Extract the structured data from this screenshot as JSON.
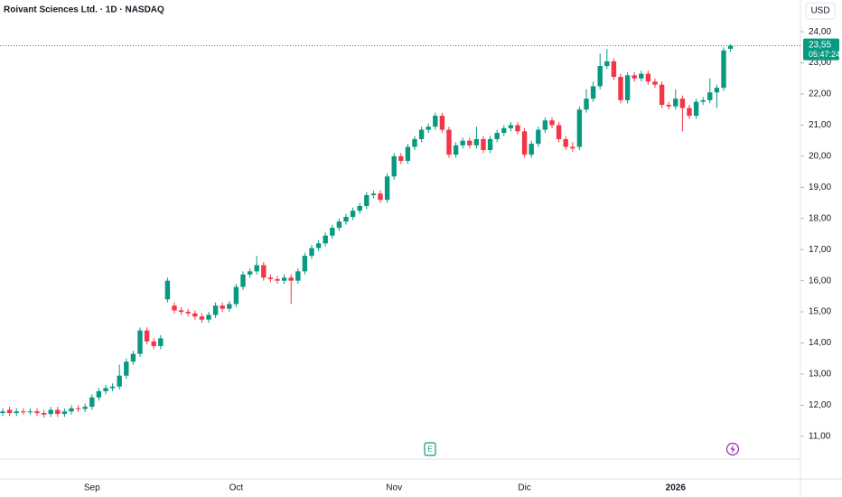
{
  "chart_data": {
    "type": "candlestick",
    "title": "Roivant Sciences Ltd. · 1D · NASDAQ",
    "currency": "USD",
    "last_price_label": "23,55",
    "countdown": "05:47:24",
    "up_color": "#089981",
    "down_color": "#f23645",
    "categories": [
      null,
      null,
      null,
      null,
      null,
      null,
      null,
      null,
      null,
      null,
      null,
      null,
      null,
      "Sep",
      null,
      null,
      null,
      null,
      null,
      null,
      null,
      null,
      null,
      null,
      null,
      null,
      null,
      null,
      null,
      null,
      null,
      null,
      null,
      null,
      "Oct",
      null,
      null,
      null,
      null,
      null,
      null,
      null,
      null,
      null,
      null,
      null,
      null,
      null,
      null,
      null,
      null,
      null,
      null,
      null,
      null,
      null,
      null,
      "Nov",
      null,
      null,
      null,
      null,
      null,
      null,
      null,
      null,
      null,
      null,
      null,
      null,
      null,
      null,
      null,
      null,
      null,
      null,
      "Dic",
      null,
      null,
      null,
      null,
      null,
      null,
      null,
      null,
      null,
      null,
      null,
      null,
      null,
      null,
      null,
      null,
      null,
      null,
      null,
      null,
      null,
      "2026",
      null,
      null,
      null,
      null,
      null,
      null,
      null,
      null
    ],
    "open": [
      11.75,
      11.85,
      11.75,
      11.8,
      11.78,
      11.8,
      11.75,
      11.72,
      11.85,
      11.72,
      11.8,
      11.9,
      11.88,
      11.95,
      12.25,
      12.45,
      12.55,
      12.6,
      12.95,
      13.4,
      13.65,
      14.4,
      14.05,
      13.9,
      15.4,
      15.2,
      15.05,
      15.0,
      14.95,
      14.85,
      14.75,
      14.9,
      15.2,
      15.1,
      15.25,
      15.8,
      16.2,
      16.3,
      16.5,
      16.1,
      16.05,
      16.0,
      16.1,
      16.0,
      16.3,
      16.8,
      17.05,
      17.2,
      17.45,
      17.7,
      17.9,
      18.05,
      18.25,
      18.4,
      18.75,
      18.8,
      18.6,
      19.35,
      20.0,
      19.85,
      20.3,
      20.55,
      20.85,
      20.95,
      21.3,
      20.85,
      20.05,
      20.35,
      20.5,
      20.35,
      20.55,
      20.2,
      20.55,
      20.75,
      20.9,
      21.0,
      20.8,
      20.05,
      20.4,
      20.85,
      21.15,
      21.0,
      20.55,
      20.3,
      20.3,
      21.5,
      21.85,
      22.25,
      22.9,
      23.05,
      22.55,
      21.8,
      22.6,
      22.5,
      22.65,
      22.4,
      22.3,
      21.65,
      21.6,
      21.85,
      21.55,
      21.3,
      21.75,
      21.8,
      22.05,
      22.2,
      23.45
    ],
    "high": [
      11.9,
      11.95,
      11.9,
      11.9,
      11.9,
      11.9,
      11.85,
      11.95,
      11.95,
      11.9,
      12.0,
      12.0,
      12.05,
      12.35,
      12.55,
      12.65,
      12.7,
      13.3,
      13.5,
      13.75,
      14.5,
      14.5,
      14.15,
      14.25,
      16.1,
      15.3,
      15.15,
      15.1,
      15.05,
      14.95,
      15.0,
      15.3,
      15.3,
      15.35,
      15.9,
      16.3,
      16.4,
      16.8,
      16.6,
      16.2,
      16.15,
      16.2,
      16.2,
      16.4,
      16.9,
      17.15,
      17.3,
      17.55,
      17.8,
      18.0,
      18.15,
      18.35,
      18.5,
      18.85,
      18.9,
      18.9,
      19.45,
      20.1,
      20.1,
      20.4,
      20.65,
      20.95,
      21.05,
      21.4,
      21.4,
      20.95,
      20.45,
      20.6,
      20.6,
      20.95,
      20.65,
      20.65,
      20.85,
      21.0,
      21.1,
      21.1,
      20.9,
      20.5,
      20.95,
      21.25,
      21.25,
      21.1,
      20.65,
      20.45,
      21.6,
      22.15,
      22.4,
      23.3,
      23.45,
      23.15,
      22.65,
      22.7,
      22.7,
      22.75,
      22.75,
      22.5,
      22.4,
      21.75,
      22.15,
      21.95,
      21.65,
      21.85,
      21.9,
      22.5,
      22.3,
      23.5,
      23.6
    ],
    "low": [
      11.65,
      11.65,
      11.65,
      11.7,
      11.7,
      11.65,
      11.6,
      11.62,
      11.62,
      11.62,
      11.7,
      11.78,
      11.78,
      11.85,
      12.15,
      12.35,
      12.45,
      12.5,
      12.85,
      13.3,
      13.55,
      13.95,
      13.8,
      13.8,
      15.3,
      14.95,
      14.9,
      14.85,
      14.75,
      14.65,
      14.65,
      14.8,
      15.0,
      15.0,
      15.15,
      15.7,
      16.1,
      16.2,
      16.0,
      15.95,
      15.9,
      15.9,
      15.25,
      15.9,
      16.2,
      16.7,
      16.95,
      17.1,
      17.35,
      17.6,
      17.8,
      17.95,
      18.15,
      18.3,
      18.65,
      18.5,
      18.5,
      19.25,
      19.75,
      19.75,
      20.2,
      20.45,
      20.75,
      20.85,
      20.75,
      19.95,
      19.95,
      20.25,
      20.25,
      20.25,
      20.1,
      20.1,
      20.45,
      20.65,
      20.8,
      20.7,
      19.95,
      19.95,
      20.3,
      20.75,
      20.9,
      20.45,
      20.2,
      20.15,
      20.2,
      21.4,
      21.75,
      22.15,
      22.8,
      22.45,
      21.7,
      21.7,
      22.4,
      22.4,
      22.3,
      22.2,
      21.55,
      21.5,
      21.5,
      20.8,
      21.2,
      21.2,
      21.65,
      21.7,
      21.55,
      22.1,
      23.35
    ],
    "close": [
      11.8,
      11.75,
      11.8,
      11.78,
      11.8,
      11.75,
      11.7,
      11.85,
      11.72,
      11.8,
      11.9,
      11.88,
      11.95,
      12.25,
      12.45,
      12.55,
      12.6,
      12.95,
      13.4,
      13.65,
      14.4,
      14.05,
      13.9,
      14.15,
      16.0,
      15.05,
      15.0,
      14.95,
      14.85,
      14.75,
      14.9,
      15.2,
      15.1,
      15.25,
      15.8,
      16.2,
      16.3,
      16.5,
      16.1,
      16.05,
      16.0,
      16.1,
      16.0,
      16.3,
      16.8,
      17.05,
      17.2,
      17.45,
      17.7,
      17.9,
      18.05,
      18.25,
      18.4,
      18.75,
      18.8,
      18.6,
      19.35,
      20.0,
      19.85,
      20.3,
      20.55,
      20.85,
      20.95,
      21.3,
      20.85,
      20.05,
      20.35,
      20.5,
      20.35,
      20.55,
      20.2,
      20.55,
      20.75,
      20.9,
      21.0,
      20.8,
      20.05,
      20.4,
      20.85,
      21.15,
      21.0,
      20.55,
      20.3,
      20.25,
      21.5,
      21.85,
      22.25,
      22.9,
      23.05,
      22.55,
      21.8,
      22.6,
      22.5,
      22.65,
      22.4,
      22.3,
      21.65,
      21.6,
      21.85,
      21.55,
      21.3,
      21.75,
      21.8,
      22.05,
      22.2,
      23.4,
      23.55
    ],
    "ylim": [
      10.27,
      25.02
    ],
    "yticks": [
      {
        "value": 11,
        "label": "11,00"
      },
      {
        "value": 12,
        "label": "12,00"
      },
      {
        "value": 13,
        "label": "13,00"
      },
      {
        "value": 14,
        "label": "14,00"
      },
      {
        "value": 15,
        "label": "15,00"
      },
      {
        "value": 16,
        "label": "16,00"
      },
      {
        "value": 17,
        "label": "17,00"
      },
      {
        "value": 18,
        "label": "18,00"
      },
      {
        "value": 19,
        "label": "19,00"
      },
      {
        "value": 20,
        "label": "20,00"
      },
      {
        "value": 21,
        "label": "21,00"
      },
      {
        "value": 22,
        "label": "22,00"
      },
      {
        "value": 23,
        "label": "23,00"
      },
      {
        "value": 24,
        "label": "24,00"
      }
    ]
  }
}
